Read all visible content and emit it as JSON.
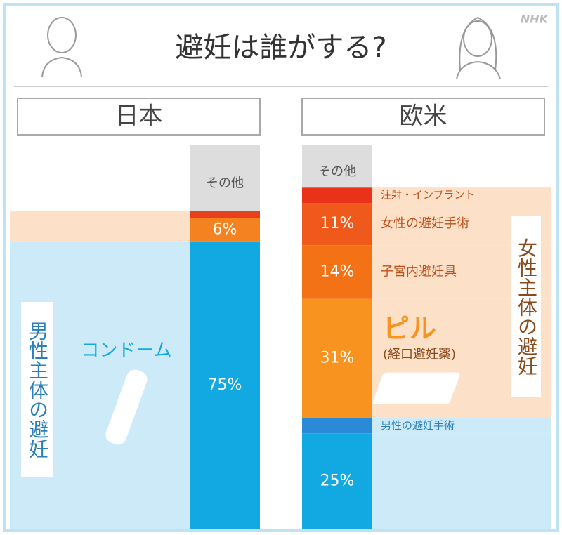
{
  "title": "避妊は誰がする?",
  "logo": "NHK",
  "chart_data": [
    {
      "type": "stacked-bar",
      "region": "日本",
      "group_label": "男性主体の避妊",
      "ylim": [
        0,
        100
      ],
      "series": [
        {
          "name": "コンドーム",
          "color": "#12a9e2",
          "values": [
            75
          ],
          "value_labels": [
            "75%"
          ]
        },
        {
          "color": "#f58220",
          "values": [
            6
          ],
          "value_labels": [
            "6%"
          ]
        },
        {
          "color": "#e8401c",
          "values": [
            2
          ]
        },
        {
          "name": "その他",
          "color": "#dddddd",
          "values": [
            17
          ]
        }
      ]
    },
    {
      "type": "stacked-bar",
      "region": "欧米",
      "group_label": "女性主体の避妊",
      "ylim": [
        0,
        100
      ],
      "series": [
        {
          "color": "#12a9e2",
          "values": [
            25
          ],
          "value_labels": [
            "25%"
          ]
        },
        {
          "name": "男性の避妊手術",
          "color": "#2a8ad8",
          "values": [
            4
          ]
        },
        {
          "name": "ピル",
          "note": "(経口避妊薬)",
          "color": "#f7931e",
          "values": [
            31
          ],
          "value_labels": [
            "31%"
          ]
        },
        {
          "name": "子宮内避妊具",
          "color": "#f47216",
          "values": [
            14
          ],
          "value_labels": [
            "14%"
          ]
        },
        {
          "name": "女性の避妊手術",
          "color": "#ef5a1c",
          "values": [
            11
          ],
          "value_labels": [
            "11%"
          ]
        },
        {
          "name": "注射・インプラント",
          "color": "#e8321a",
          "values": [
            4
          ]
        },
        {
          "name": "その他",
          "color": "#dddddd",
          "values": [
            11
          ]
        }
      ]
    }
  ]
}
